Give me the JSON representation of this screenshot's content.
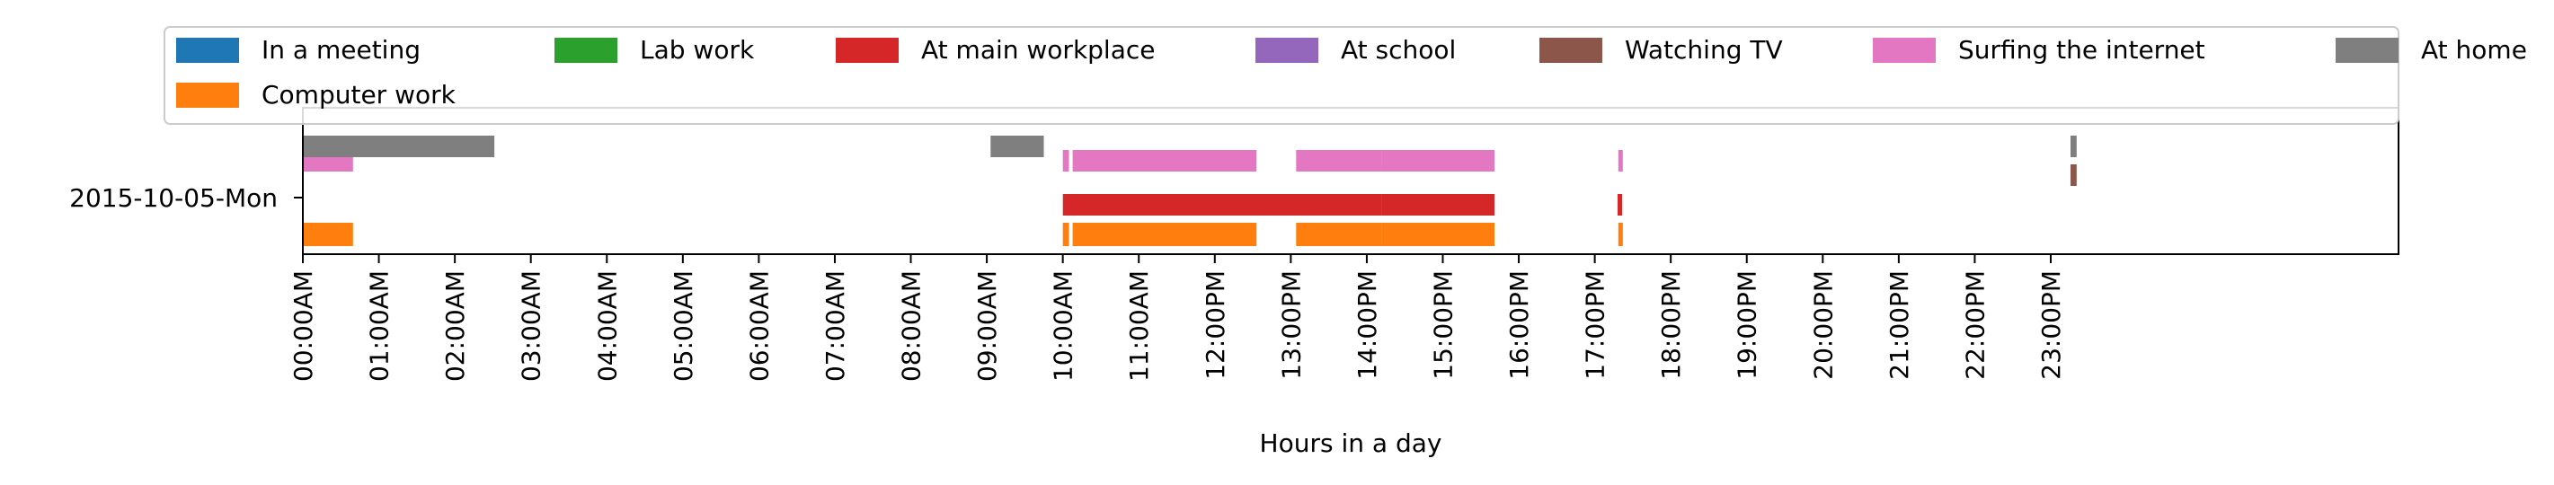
{
  "chart_data": {
    "type": "bar",
    "orientation": "horizontal-timeline",
    "xlabel": "Hours in a day",
    "ylabel": "",
    "xlim": [
      0,
      24
    ],
    "y_categories": [
      "2015-10-05-Mon"
    ],
    "x_ticks": [
      {
        "value": 0,
        "label": "00:00AM"
      },
      {
        "value": 1,
        "label": "01:00AM"
      },
      {
        "value": 2,
        "label": "02:00AM"
      },
      {
        "value": 3,
        "label": "03:00AM"
      },
      {
        "value": 4,
        "label": "04:00AM"
      },
      {
        "value": 5,
        "label": "05:00AM"
      },
      {
        "value": 6,
        "label": "06:00AM"
      },
      {
        "value": 7,
        "label": "07:00AM"
      },
      {
        "value": 8,
        "label": "08:00AM"
      },
      {
        "value": 9,
        "label": "09:00AM"
      },
      {
        "value": 10,
        "label": "10:00AM"
      },
      {
        "value": 11,
        "label": "11:00AM"
      },
      {
        "value": 12,
        "label": "12:00PM"
      },
      {
        "value": 13,
        "label": "13:00PM"
      },
      {
        "value": 14,
        "label": "14:00PM"
      },
      {
        "value": 15,
        "label": "15:00PM"
      },
      {
        "value": 16,
        "label": "16:00PM"
      },
      {
        "value": 17,
        "label": "17:00PM"
      },
      {
        "value": 18,
        "label": "18:00PM"
      },
      {
        "value": 19,
        "label": "19:00PM"
      },
      {
        "value": 20,
        "label": "20:00PM"
      },
      {
        "value": 21,
        "label": "21:00PM"
      },
      {
        "value": 22,
        "label": "22:00PM"
      },
      {
        "value": 23,
        "label": "23:00PM"
      }
    ],
    "legend_position": "top",
    "legend_columns": 7,
    "series": [
      {
        "name": "In a meeting",
        "color": "#1f77b4",
        "intervals": []
      },
      {
        "name": "Lab work",
        "color": "#2ca02c",
        "intervals": []
      },
      {
        "name": "At main workplace",
        "color": "#d62728",
        "intervals": [
          [
            10.0,
            14.2
          ],
          [
            14.2,
            15.68
          ],
          [
            17.3,
            17.34
          ]
        ]
      },
      {
        "name": "At school",
        "color": "#9467bd",
        "intervals": []
      },
      {
        "name": "Watching TV",
        "color": "#8c564b",
        "intervals": [
          [
            23.26,
            23.34
          ]
        ]
      },
      {
        "name": "Surfing the internet",
        "color": "#e377c2",
        "intervals": [
          [
            0.0,
            0.66
          ],
          [
            10.0,
            10.08
          ],
          [
            10.13,
            12.55
          ],
          [
            13.07,
            14.2
          ],
          [
            14.2,
            15.68
          ],
          [
            17.31,
            17.35
          ]
        ]
      },
      {
        "name": "At home",
        "color": "#7f7f7f",
        "intervals": [
          [
            0.0,
            2.52
          ],
          [
            9.05,
            9.75
          ],
          [
            23.26,
            23.34
          ]
        ]
      },
      {
        "name": "Computer work",
        "color": "#ff7f0e",
        "intervals": [
          [
            0.0,
            0.66
          ],
          [
            10.0,
            10.08
          ],
          [
            10.13,
            12.55
          ],
          [
            13.07,
            14.2
          ],
          [
            14.2,
            15.68
          ],
          [
            17.31,
            17.35
          ]
        ]
      }
    ]
  }
}
